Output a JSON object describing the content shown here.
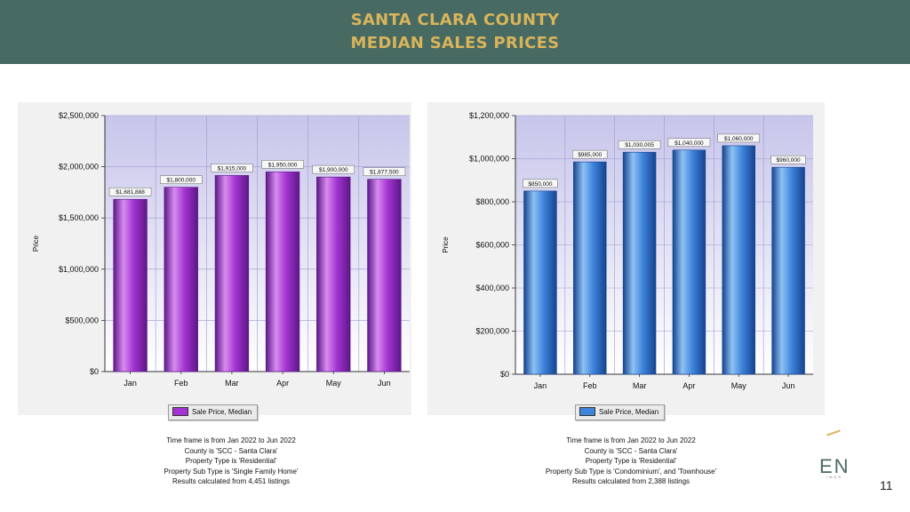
{
  "header": {
    "line1": "SANTA CLARA COUNTY",
    "line2": "MEDIAN SALES PRICES"
  },
  "page_number": "11",
  "logo": {
    "text": "EN",
    "subtext": "IMES"
  },
  "chart_data": [
    {
      "type": "bar",
      "title": "",
      "xlabel": "",
      "ylabel": "Price",
      "ylim": [
        0,
        2500000
      ],
      "ytick_labels": [
        "$0",
        "$500,000",
        "$1,000,000",
        "$1,500,000",
        "$2,000,000",
        "$2,500,000"
      ],
      "yticks": [
        0,
        500000,
        1000000,
        1500000,
        2000000,
        2500000
      ],
      "categories": [
        "Jan",
        "Feb",
        "Mar",
        "Apr",
        "May",
        "Jun"
      ],
      "series": [
        {
          "name": "Sale Price, Median",
          "values": [
            1681888,
            1800000,
            1915000,
            1950000,
            1900000,
            1877500
          ],
          "value_labels": [
            "$1,681,888",
            "$1,800,000",
            "$1,915,000",
            "$1,950,000",
            "$1,900,000",
            "$1,877,500"
          ]
        }
      ],
      "colors": {
        "bar_light": "#d88cf0",
        "bar_main": "#a434d2",
        "bar_dark": "#5c1787",
        "plot_top": "#c7c5ea",
        "plot_bottom": "#ffffff"
      },
      "grid": true,
      "legend": "bottom-center",
      "notes": [
        "Time frame is from Jan 2022 to Jun 2022",
        "County is 'SCC - Santa Clara'",
        "Property Type is 'Residential'",
        "Property Sub Type is 'Single Family Home'",
        "Results calculated from 4,451 listings"
      ]
    },
    {
      "type": "bar",
      "title": "",
      "xlabel": "",
      "ylabel": "Price",
      "ylim": [
        0,
        1200000
      ],
      "ytick_labels": [
        "$0",
        "$200,000",
        "$400,000",
        "$600,000",
        "$800,000",
        "$1,000,000",
        "$1,200,000"
      ],
      "yticks": [
        0,
        200000,
        400000,
        600000,
        800000,
        1000000,
        1200000
      ],
      "categories": [
        "Jan",
        "Feb",
        "Mar",
        "Apr",
        "May",
        "Jun"
      ],
      "series": [
        {
          "name": "Sale Price, Median",
          "values": [
            850000,
            985000,
            1030005,
            1040000,
            1060000,
            960000
          ],
          "value_labels": [
            "$850,000",
            "$985,000",
            "$1,030,005",
            "$1,040,000",
            "$1,060,000",
            "$960,000"
          ]
        }
      ],
      "colors": {
        "bar_light": "#8ec2f4",
        "bar_main": "#3f84dc",
        "bar_dark": "#15438f",
        "plot_top": "#c7c5ea",
        "plot_bottom": "#ffffff"
      },
      "grid": true,
      "legend": "bottom-center",
      "notes": [
        "Time frame is from Jan 2022 to Jun 2022",
        "County is 'SCC - Santa Clara'",
        "Property Type is 'Residential'",
        "Property Sub Type is 'Condominium', and 'Townhouse'",
        "Results calculated from 2,388 listings"
      ]
    }
  ]
}
